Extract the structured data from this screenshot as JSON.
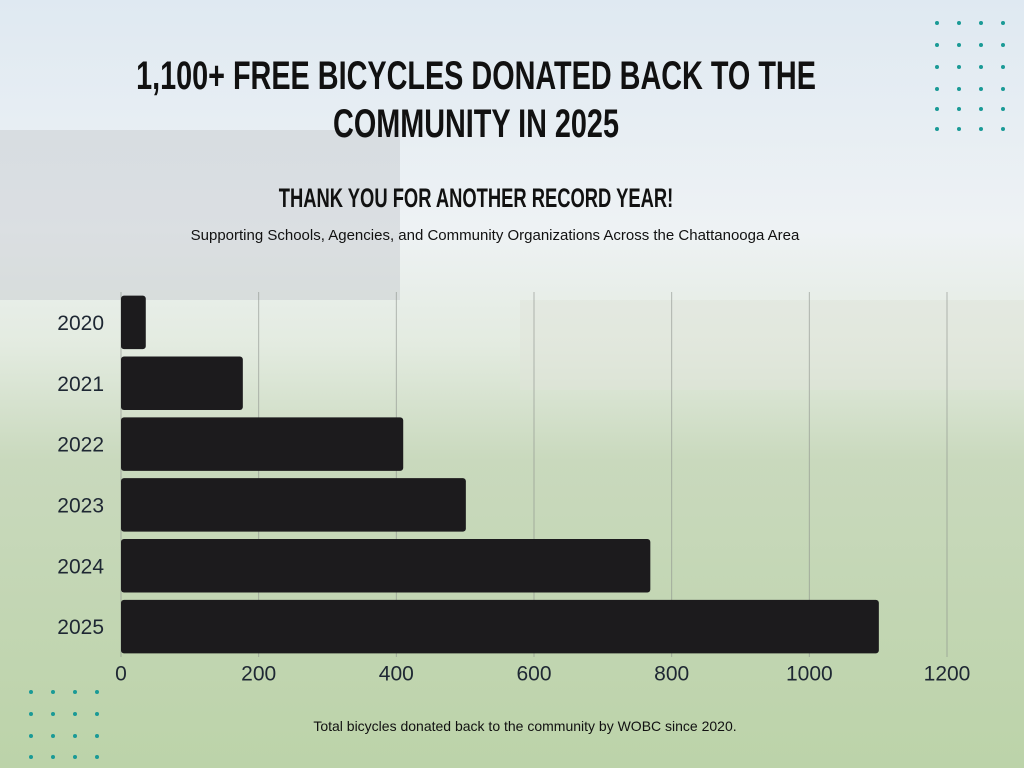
{
  "chart_data": {
    "type": "bar",
    "orientation": "horizontal",
    "title": "1,100+ FREE BICYCLES DONATED BACK TO THE COMMUNITY IN 2025",
    "subtitle": "THANK YOU FOR ANOTHER RECORD YEAR!",
    "description": "Supporting Schools, Agencies, and Community Organizations Across the Chattanooga Area",
    "caption": "Total bicycles donated back to the community by WOBC since 2020.",
    "categories": [
      "2020",
      "2021",
      "2022",
      "2023",
      "2024",
      "2025"
    ],
    "values": [
      36,
      177,
      410,
      501,
      769,
      1101
    ],
    "color": "#1c1b1d",
    "xlim": [
      0,
      1200
    ],
    "xticks": [
      0,
      200,
      400,
      600,
      800,
      1000,
      1200
    ],
    "grid": true
  }
}
